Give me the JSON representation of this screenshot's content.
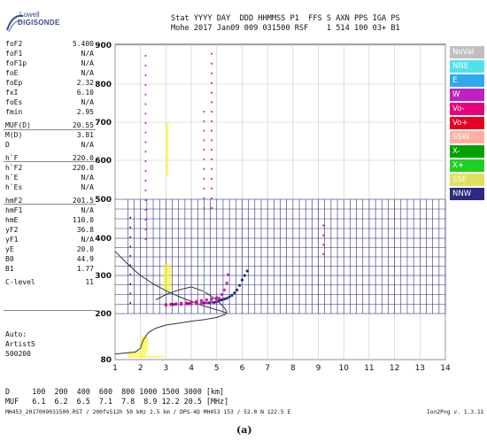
{
  "logo": {
    "line1": "Lowell",
    "line2": "DIGISONDE"
  },
  "header": {
    "row1": "Stat YYYY DAY  DDD HHMMSS P1  FFS S AXN PPS IGA PS",
    "row2": "Mohe 2017 Jan09 009 031500 RSF    1 514 100 03+ B1"
  },
  "params": [
    {
      "k": "foF2",
      "v": "5.400"
    },
    {
      "k": "foF1",
      "v": "N/A"
    },
    {
      "k": "foF1p",
      "v": "N/A"
    },
    {
      "k": "foE",
      "v": "N/A"
    },
    {
      "k": "foEp",
      "v": "2.32"
    },
    {
      "k": "fxI",
      "v": "6.10"
    },
    {
      "k": "foEs",
      "v": "N/A"
    },
    {
      "k": "fmin",
      "v": "2.95"
    },
    {
      "k": "MUF(D)",
      "v": "20.55"
    },
    {
      "k": "M(D)",
      "v": "3.81"
    },
    {
      "k": "D",
      "v": "N/A"
    },
    {
      "k": "h`F",
      "v": "220.0"
    },
    {
      "k": "h`F2",
      "v": "220.0"
    },
    {
      "k": "h`E",
      "v": "N/A"
    },
    {
      "k": "h`Es",
      "v": "N/A"
    },
    {
      "k": "hmF2",
      "v": "201.5"
    },
    {
      "k": "hmF1",
      "v": "N/A"
    },
    {
      "k": "hmE",
      "v": "110.0"
    },
    {
      "k": "yF2",
      "v": "36.8"
    },
    {
      "k": "yF1",
      "v": "N/A"
    },
    {
      "k": "yE",
      "v": "20.0"
    },
    {
      "k": "B0",
      "v": "44.9"
    },
    {
      "k": "B1",
      "v": "1.77"
    },
    {
      "k": "C-level",
      "v": "11"
    }
  ],
  "auto": {
    "l1": "Auto:",
    "l2": "Artist5",
    "l3": "500200"
  },
  "legend": [
    {
      "label": "NoVal",
      "color": "#c0c0c0"
    },
    {
      "label": "NNE",
      "color": "#50e0f0"
    },
    {
      "label": "E",
      "color": "#30a8f0"
    },
    {
      "label": "W",
      "color": "#c020c0"
    },
    {
      "label": "Vo-",
      "color": "#e8007a"
    },
    {
      "label": "Vo+",
      "color": "#e80020"
    },
    {
      "label": "SSW",
      "color": "#ffb0a0"
    },
    {
      "label": "X-",
      "color": "#00a000"
    },
    {
      "label": "X+",
      "color": "#20d020"
    },
    {
      "label": "SSE",
      "color": "#e0e060"
    },
    {
      "label": "NNW",
      "color": "#2a2a80"
    }
  ],
  "chart_data": {
    "type": "scatter",
    "title": "",
    "xlabel": "",
    "ylabel": "",
    "xlim": [
      1,
      14
    ],
    "ylim": [
      80,
      900
    ],
    "x_ticks": [
      1,
      2,
      3,
      4,
      5,
      6,
      7,
      8,
      9,
      10,
      11,
      12,
      13,
      14
    ],
    "y_ticks": [
      80,
      200,
      300,
      400,
      500,
      600,
      700,
      800,
      900
    ],
    "series": [
      {
        "name": "NNW",
        "x": [
          3.0,
          3.3,
          3.6,
          3.9,
          4.2,
          4.5,
          4.7,
          4.9,
          5.0,
          5.1,
          5.2,
          5.3,
          5.4,
          5.5,
          5.6,
          5.7,
          5.8,
          5.9,
          6.0,
          6.1,
          6.2
        ],
        "y": [
          222,
          224,
          224,
          226,
          226,
          228,
          228,
          229,
          231,
          234,
          236,
          238,
          240,
          244,
          248,
          254,
          262,
          274,
          288,
          300,
          312
        ]
      },
      {
        "name": "W",
        "x": [
          3.0,
          3.2,
          3.4,
          3.6,
          3.8,
          4.0,
          4.2,
          4.4,
          4.6,
          4.8,
          5.0,
          5.1,
          5.2,
          5.3,
          5.4,
          5.45
        ],
        "y": [
          222,
          223,
          224,
          224,
          225,
          225,
          226,
          227,
          228,
          230,
          234,
          240,
          250,
          262,
          280,
          302
        ]
      },
      {
        "name": "Vo-",
        "x": [
          3.0,
          3.2,
          3.4,
          3.6,
          3.8,
          4.0,
          4.2,
          4.4,
          4.6,
          4.8,
          5.0
        ],
        "y": [
          224,
          225,
          226,
          227,
          228,
          230,
          232,
          234,
          236,
          238,
          242
        ]
      }
    ],
    "profile_curve": {
      "x": [
        1.0,
        1.5,
        2.0,
        2.5,
        3.0,
        3.5,
        4.0,
        4.5,
        4.8,
        5.0,
        5.2,
        5.35,
        5.4,
        5.3,
        5.0,
        4.5,
        4.0,
        3.5,
        3.0,
        2.6,
        2.3,
        2.1,
        2.0,
        1.8,
        1.5,
        1.2,
        1.0
      ],
      "y": [
        365,
        330,
        300,
        278,
        260,
        245,
        232,
        220,
        214,
        210,
        206,
        203,
        202,
        197,
        190,
        184,
        180,
        175,
        170,
        162,
        150,
        130,
        110,
        100,
        98,
        96,
        95
      ]
    },
    "virtual_curve": {
      "x": [
        2.6,
        3.0,
        3.5,
        4.0,
        4.5,
        5.0,
        5.3,
        5.4
      ],
      "y": [
        236,
        250,
        262,
        270,
        258,
        236,
        215,
        205
      ]
    }
  },
  "bottom": {
    "row1": "D     100  200  400  600  800 1000 1500 3000 [km]",
    "row2": "MUF   6.1  6.2  6.5  7.1  7.8  8.9 12.2 20.5 [MHz]",
    "footer_left": "MH453_2017009031500.RST / 200fs512h 50 kHz 2.5 km / DPS-4D MH453 153 / 52.0 N 122.5 E",
    "footer_right": "Ion2Png v. 1.3.11"
  },
  "caption": "(a)"
}
